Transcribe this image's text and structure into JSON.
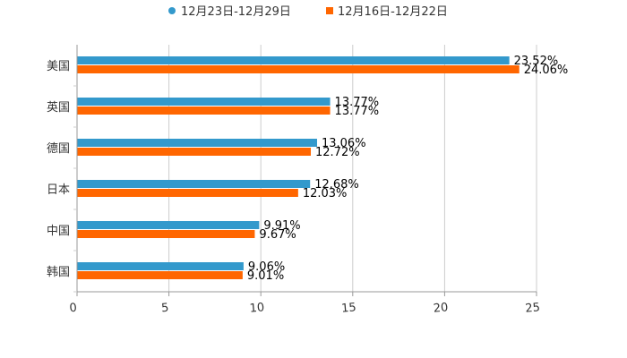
{
  "chart_data": {
    "type": "bar",
    "orientation": "horizontal",
    "title": "",
    "xlabel": "",
    "ylabel": "",
    "xlim": [
      0,
      25
    ],
    "ticks": [
      "0",
      "5",
      "10",
      "15",
      "20",
      "25"
    ],
    "tick_values": [
      0,
      5,
      10,
      15,
      20,
      25
    ],
    "grid": true,
    "legend_position": "top-center",
    "categories": [
      "美国",
      "英国",
      "德国",
      "日本",
      "中国",
      "韩国"
    ],
    "series": [
      {
        "name": "12月23日-12月29日",
        "color": "#3399cc",
        "values": [
          23.52,
          13.77,
          13.06,
          12.68,
          9.91,
          9.06
        ],
        "labels": [
          "23.52%",
          "13.77%",
          "13.06%",
          "12.68%",
          "9.91%",
          "9.06%"
        ]
      },
      {
        "name": "12月16日-12月22日",
        "color": "#ff6600",
        "values": [
          24.06,
          13.77,
          12.72,
          12.03,
          9.67,
          9.01
        ],
        "labels": [
          "24.06%",
          "13.77%",
          "12.72%",
          "12.03%",
          "9.67%",
          "9.01%"
        ]
      }
    ]
  }
}
